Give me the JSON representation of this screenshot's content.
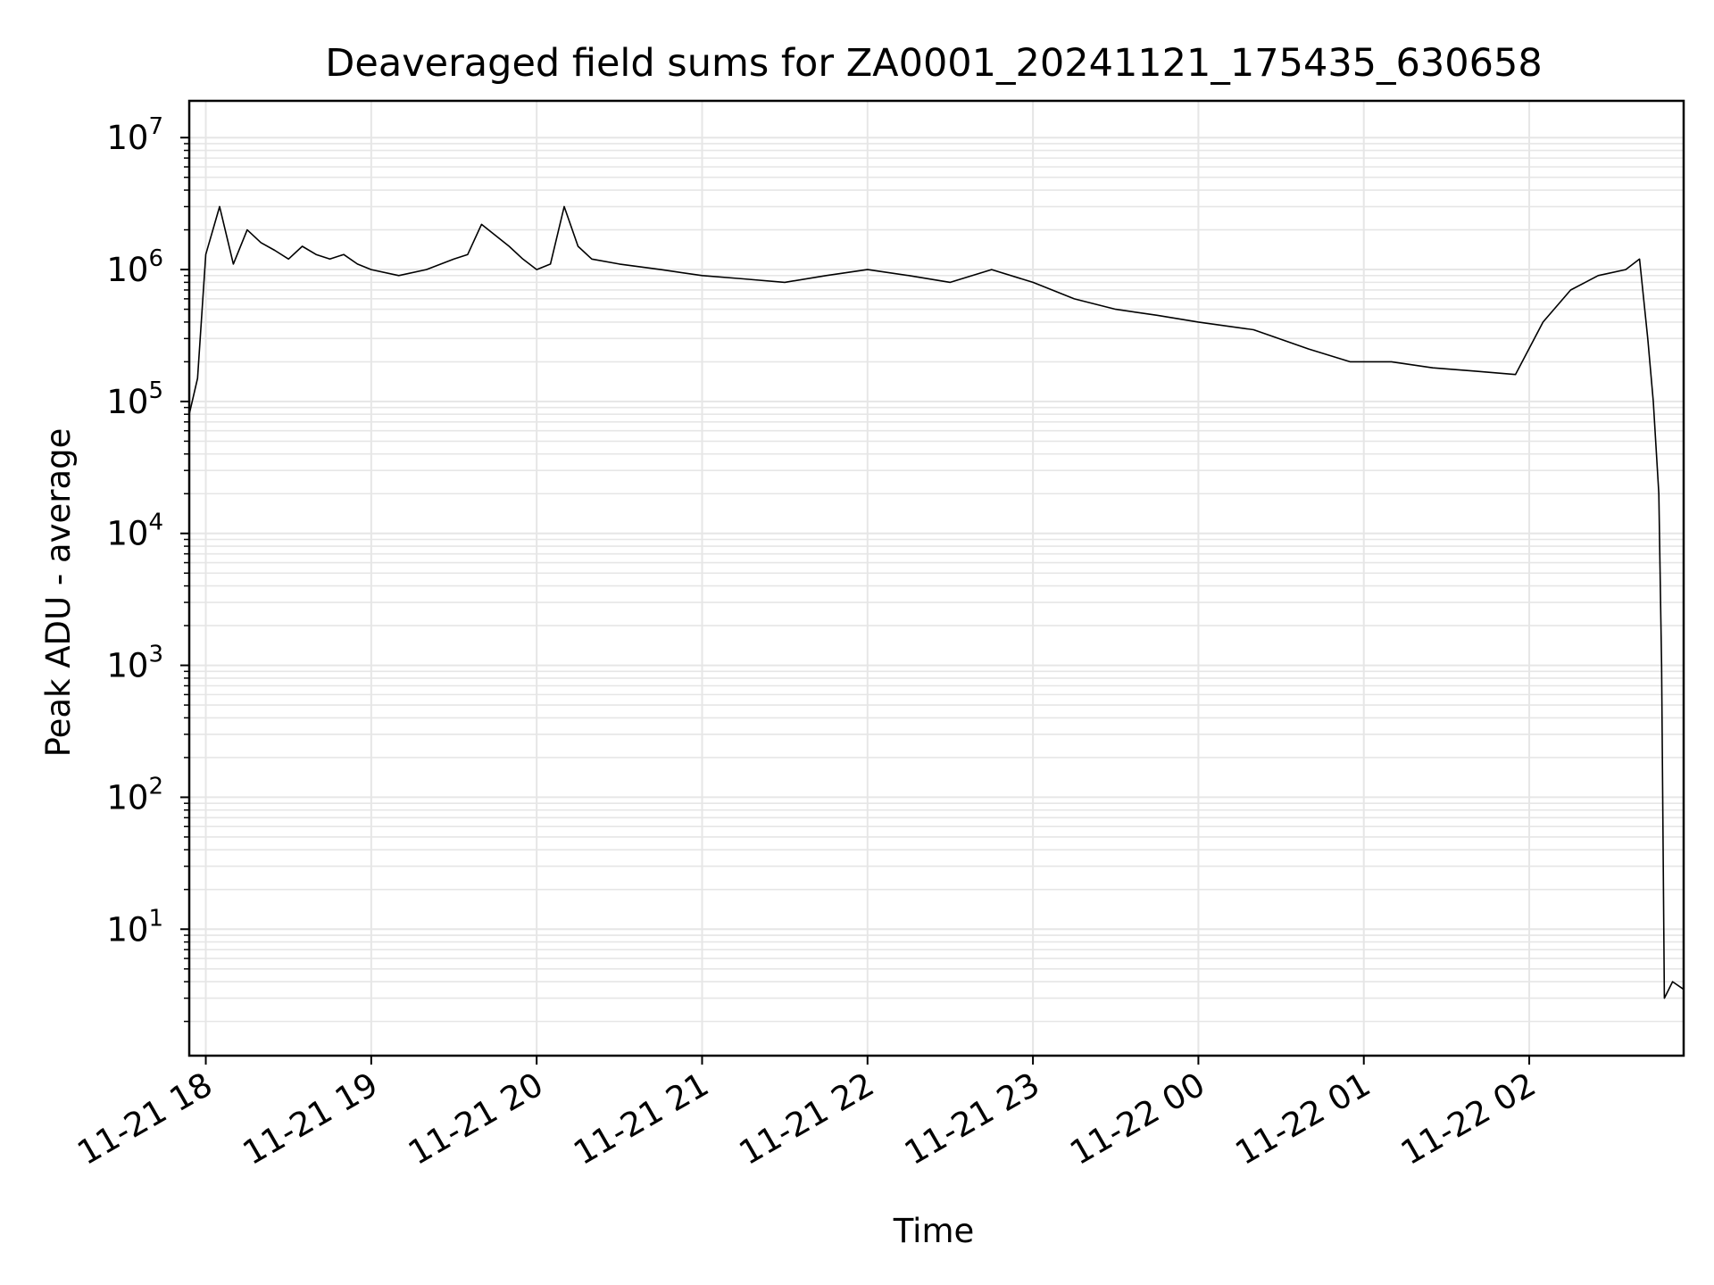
{
  "chart_data": {
    "type": "line",
    "title": "Deaveraged field sums for ZA0001_20241121_175435_630658",
    "xlabel": "Time",
    "ylabel": "Peak ADU - average",
    "y_scale": "log",
    "grid": true,
    "grid_minor": true,
    "line_color": "#000000",
    "grid_color": "#e6e6e6",
    "xlim": [
      "2024-11-21 17:54",
      "2024-11-22 02:56"
    ],
    "ylim": [
      1.1,
      19000000
    ],
    "x_ticks": [
      {
        "value": "2024-11-21 18:00",
        "label": "11-21 18"
      },
      {
        "value": "2024-11-21 19:00",
        "label": "11-21 19"
      },
      {
        "value": "2024-11-21 20:00",
        "label": "11-21 20"
      },
      {
        "value": "2024-11-21 21:00",
        "label": "11-21 21"
      },
      {
        "value": "2024-11-21 22:00",
        "label": "11-21 22"
      },
      {
        "value": "2024-11-21 23:00",
        "label": "11-21 23"
      },
      {
        "value": "2024-11-22 00:00",
        "label": "11-22 00"
      },
      {
        "value": "2024-11-22 01:00",
        "label": "11-22 01"
      },
      {
        "value": "2024-11-22 02:00",
        "label": "11-22 02"
      }
    ],
    "y_ticks": [
      {
        "value": 10,
        "base": "10",
        "exp": "1"
      },
      {
        "value": 100,
        "base": "10",
        "exp": "2"
      },
      {
        "value": 1000,
        "base": "10",
        "exp": "3"
      },
      {
        "value": 10000,
        "base": "10",
        "exp": "4"
      },
      {
        "value": 100000,
        "base": "10",
        "exp": "5"
      },
      {
        "value": 1000000,
        "base": "10",
        "exp": "6"
      },
      {
        "value": 10000000,
        "base": "10",
        "exp": "7"
      }
    ],
    "series": [
      {
        "x": [
          "2024-11-21 17:54",
          "2024-11-21 17:57",
          "2024-11-21 18:00",
          "2024-11-21 18:05",
          "2024-11-21 18:10",
          "2024-11-21 18:15",
          "2024-11-21 18:20",
          "2024-11-21 18:25",
          "2024-11-21 18:30",
          "2024-11-21 18:35",
          "2024-11-21 18:40",
          "2024-11-21 18:45",
          "2024-11-21 18:50",
          "2024-11-21 18:55",
          "2024-11-21 19:00",
          "2024-11-21 19:10",
          "2024-11-21 19:20",
          "2024-11-21 19:30",
          "2024-11-21 19:35",
          "2024-11-21 19:40",
          "2024-11-21 19:50",
          "2024-11-21 19:55",
          "2024-11-21 20:00",
          "2024-11-21 20:05",
          "2024-11-21 20:10",
          "2024-11-21 20:15",
          "2024-11-21 20:20",
          "2024-11-21 20:30",
          "2024-11-21 20:45",
          "2024-11-21 21:00",
          "2024-11-21 21:15",
          "2024-11-21 21:30",
          "2024-11-21 21:45",
          "2024-11-21 22:00",
          "2024-11-21 22:15",
          "2024-11-21 22:30",
          "2024-11-21 22:45",
          "2024-11-21 23:00",
          "2024-11-21 23:15",
          "2024-11-21 23:30",
          "2024-11-21 23:45",
          "2024-11-22 00:00",
          "2024-11-22 00:20",
          "2024-11-22 00:40",
          "2024-11-22 00:55",
          "2024-11-22 01:10",
          "2024-11-22 01:25",
          "2024-11-22 01:40",
          "2024-11-22 01:55",
          "2024-11-22 02:05",
          "2024-11-22 02:15",
          "2024-11-22 02:25",
          "2024-11-22 02:35",
          "2024-11-22 02:40",
          "2024-11-22 02:43",
          "2024-11-22 02:45",
          "2024-11-22 02:47",
          "2024-11-22 02:48",
          "2024-11-22 02:49",
          "2024-11-22 02:52",
          "2024-11-22 02:56"
        ],
        "y": [
          80000,
          150000,
          1300000,
          3000000,
          1100000,
          2000000,
          1600000,
          1400000,
          1200000,
          1500000,
          1300000,
          1200000,
          1300000,
          1100000,
          1000000,
          900000,
          1000000,
          1200000,
          1300000,
          2200000,
          1500000,
          1200000,
          1000000,
          1100000,
          3000000,
          1500000,
          1200000,
          1100000,
          1000000,
          900000,
          850000,
          800000,
          900000,
          1000000,
          900000,
          800000,
          1000000,
          800000,
          600000,
          500000,
          450000,
          400000,
          350000,
          250000,
          200000,
          200000,
          180000,
          170000,
          160000,
          400000,
          700000,
          900000,
          1000000,
          1200000,
          300000,
          100000,
          20000,
          1000,
          3,
          4,
          3.5
        ]
      }
    ]
  }
}
